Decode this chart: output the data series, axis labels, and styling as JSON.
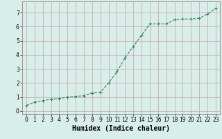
{
  "x": [
    0,
    1,
    2,
    3,
    4,
    5,
    6,
    7,
    8,
    9,
    10,
    11,
    12,
    13,
    14,
    15,
    16,
    17,
    18,
    19,
    20,
    21,
    22,
    23
  ],
  "y": [
    0.4,
    0.65,
    0.75,
    0.85,
    0.9,
    1.0,
    1.05,
    1.1,
    1.3,
    1.35,
    2.0,
    2.8,
    3.8,
    4.6,
    5.4,
    6.2,
    6.2,
    6.2,
    6.5,
    6.55,
    6.55,
    6.6,
    6.9,
    7.3
  ],
  "line_color": "#2e7d6e",
  "marker": "+",
  "marker_size": 3,
  "linewidth": 0.8,
  "xlabel": "Humidex (Indice chaleur)",
  "xlabel_fontsize": 7,
  "ylim": [
    -0.2,
    7.8
  ],
  "xlim": [
    -0.5,
    23.5
  ],
  "yticks": [
    0,
    1,
    2,
    3,
    4,
    5,
    6,
    7
  ],
  "xticks": [
    0,
    1,
    2,
    3,
    4,
    5,
    6,
    7,
    8,
    9,
    10,
    11,
    12,
    13,
    14,
    15,
    16,
    17,
    18,
    19,
    20,
    21,
    22,
    23
  ],
  "grid_color": "#c8a0a0",
  "bg_color": "#d8eee8",
  "tick_fontsize": 5.5,
  "linestyle": "--",
  "spine_color": "#888888"
}
